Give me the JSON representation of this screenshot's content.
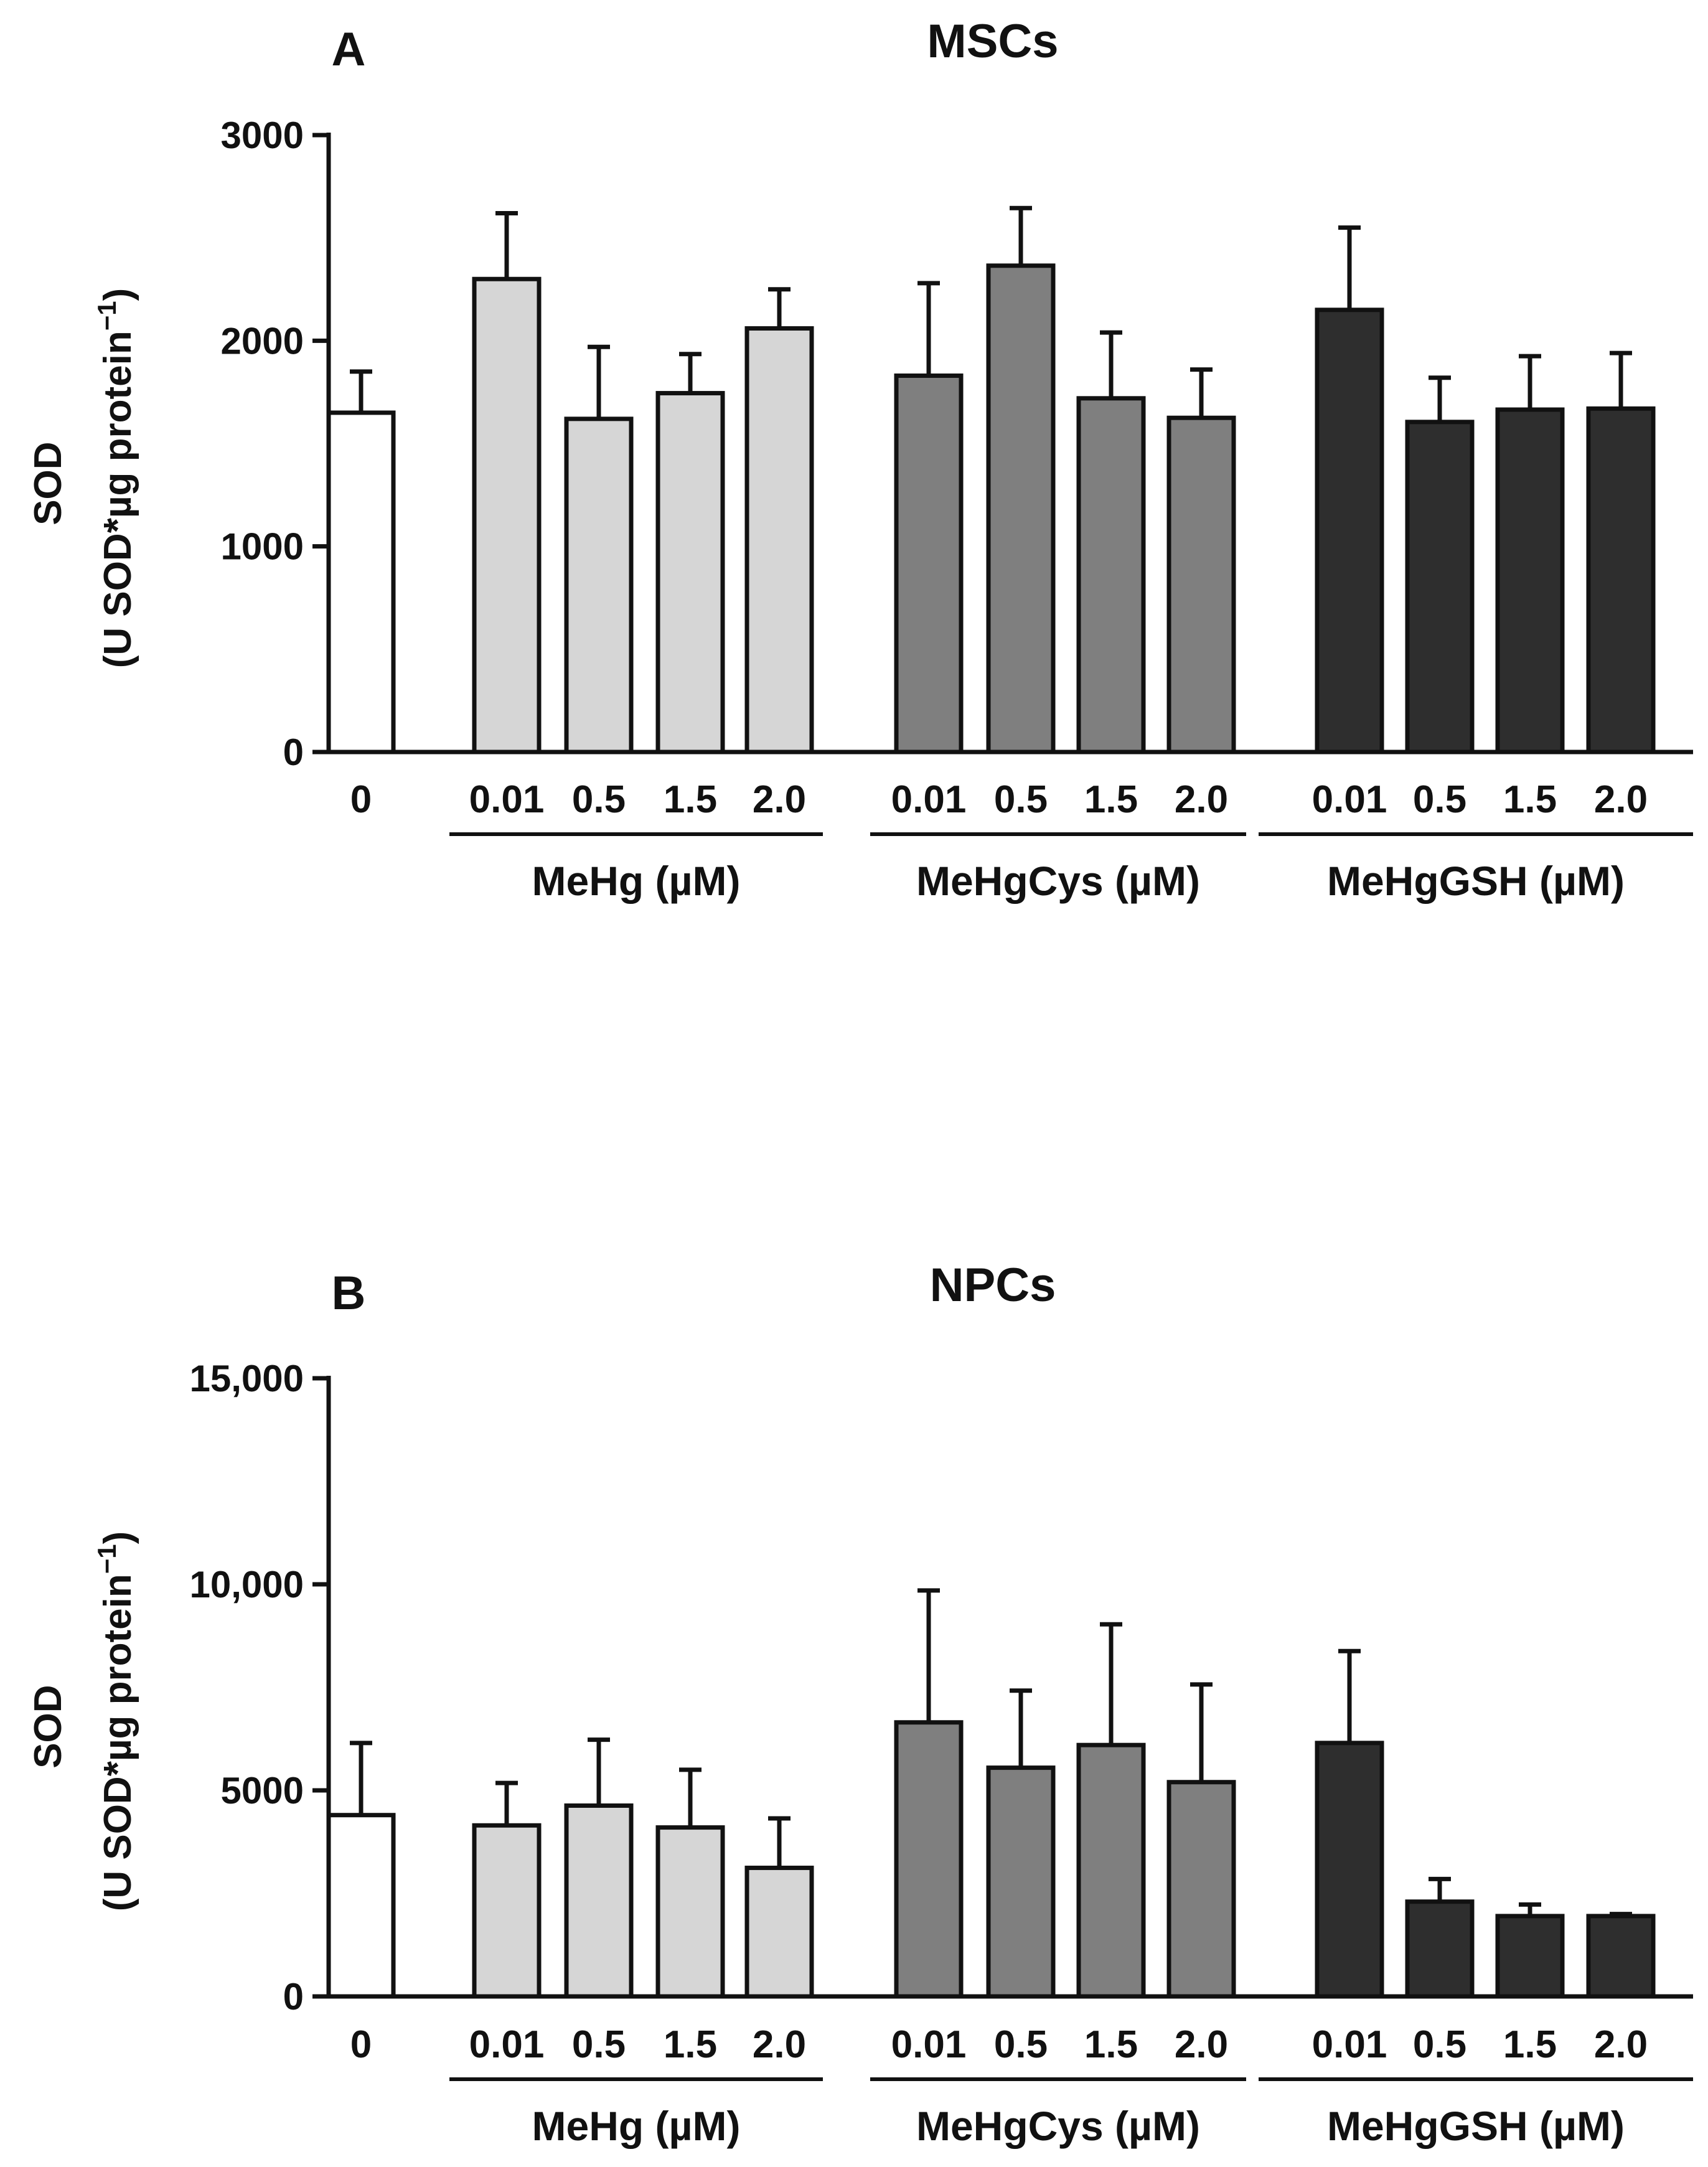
{
  "chart_data": [
    {
      "type": "bar",
      "panel_label": "A",
      "title": "MSCs",
      "ylabel_line1": "SOD",
      "ylabel_line2": "(U SOD*µg protein",
      "ylabel_sup": "−1",
      "ylabel_close": ")",
      "ylim": [
        0,
        3000
      ],
      "yticks": [
        0,
        1000,
        2000,
        3000
      ],
      "ytick_labels": [
        "0",
        "1000",
        "2000",
        "3000"
      ],
      "categories": [
        "0",
        "0.01",
        "0.5",
        "1.5",
        "2.0",
        "0.01",
        "0.5",
        "1.5",
        "2.0",
        "0.01",
        "0.5",
        "1.5",
        "2.0"
      ],
      "groups": [
        {
          "name": "",
          "color": "#ffffff",
          "indices": [
            0
          ]
        },
        {
          "name": "MeHg (µM)",
          "color": "#d6d6d6",
          "indices": [
            1,
            2,
            3,
            4
          ]
        },
        {
          "name": "MeHgCys (µM)",
          "color": "#7f7f7f",
          "indices": [
            5,
            6,
            7,
            8
          ]
        },
        {
          "name": "MeHgGSH (µM)",
          "color": "#2e2e2e",
          "indices": [
            9,
            10,
            11,
            12
          ]
        }
      ],
      "values": [
        1650,
        2300,
        1620,
        1745,
        2060,
        1830,
        2365,
        1720,
        1625,
        2150,
        1605,
        1665,
        1670
      ],
      "errors": [
        200,
        320,
        350,
        190,
        190,
        450,
        280,
        320,
        235,
        400,
        215,
        260,
        270
      ]
    },
    {
      "type": "bar",
      "panel_label": "B",
      "title": "NPCs",
      "ylabel_line1": "SOD",
      "ylabel_line2": "(U SOD*µg protein",
      "ylabel_sup": "−1",
      "ylabel_close": ")",
      "ylim": [
        0,
        15000
      ],
      "yticks": [
        0,
        5000,
        10000,
        15000
      ],
      "ytick_labels": [
        "0",
        "5000",
        "10,000",
        "15,000"
      ],
      "categories": [
        "0",
        "0.01",
        "0.5",
        "1.5",
        "2.0",
        "0.01",
        "0.5",
        "1.5",
        "2.0",
        "0.01",
        "0.5",
        "1.5",
        "2.0"
      ],
      "groups": [
        {
          "name": "",
          "color": "#ffffff",
          "indices": [
            0
          ]
        },
        {
          "name": "MeHg (µM)",
          "color": "#d6d6d6",
          "indices": [
            1,
            2,
            3,
            4
          ]
        },
        {
          "name": "MeHgCys (µM)",
          "color": "#7f7f7f",
          "indices": [
            5,
            6,
            7,
            8
          ]
        },
        {
          "name": "MeHgGSH (µM)",
          "color": "#2e2e2e",
          "indices": [
            9,
            10,
            11,
            12
          ]
        }
      ],
      "values": [
        4400,
        4150,
        4630,
        4100,
        3120,
        6650,
        5550,
        6100,
        5200,
        6150,
        2300,
        1950,
        1950
      ],
      "errors": [
        1750,
        1030,
        1600,
        1400,
        1200,
        3200,
        1870,
        2930,
        2370,
        2230,
        550,
        280,
        50
      ]
    }
  ]
}
